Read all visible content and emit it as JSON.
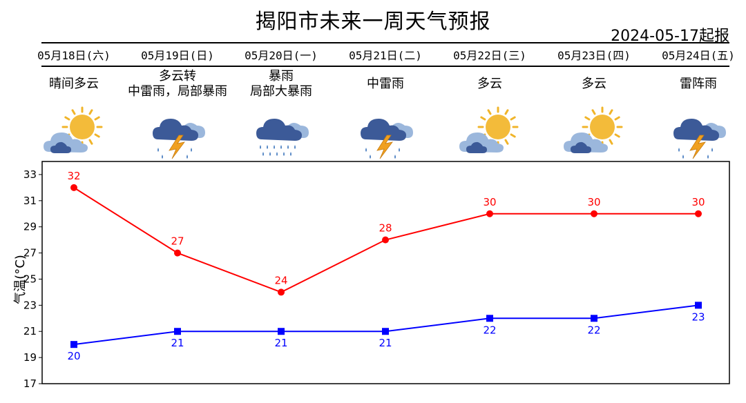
{
  "header": {
    "title": "揭阳市未来一周天气预报",
    "issued": "2024-05-17起报"
  },
  "days": [
    {
      "date": "05月18日(六)",
      "weather": [
        "晴间多云"
      ],
      "icon": "partly-cloudy-sun-icon"
    },
    {
      "date": "05月19日(日)",
      "weather": [
        "多云转",
        "中雷雨，局部暴雨"
      ],
      "icon": "thunderstorm-icon"
    },
    {
      "date": "05月20日(一)",
      "weather": [
        "暴雨",
        "局部大暴雨"
      ],
      "icon": "heavy-rain-icon"
    },
    {
      "date": "05月21日(二)",
      "weather": [
        "中雷雨"
      ],
      "icon": "thunderstorm-icon"
    },
    {
      "date": "05月22日(三)",
      "weather": [
        "多云"
      ],
      "icon": "partly-cloudy-sun-icon"
    },
    {
      "date": "05月23日(四)",
      "weather": [
        "多云"
      ],
      "icon": "partly-cloudy-sun-icon"
    },
    {
      "date": "05月24日(五)",
      "weather": [
        "雷阵雨"
      ],
      "icon": "thunderstorm-icon"
    }
  ],
  "chart_data": {
    "type": "line",
    "title": "",
    "xlabel": "",
    "ylabel": "气温(°C)",
    "categories": [
      "05月18日(六)",
      "05月19日(日)",
      "05月20日(一)",
      "05月21日(二)",
      "05月22日(三)",
      "05月23日(四)",
      "05月24日(五)"
    ],
    "ylim": [
      17,
      34
    ],
    "yticks": [
      17,
      19,
      21,
      23,
      25,
      27,
      29,
      31,
      33
    ],
    "grid": false,
    "series": [
      {
        "values": [
          32,
          27,
          24,
          28,
          30,
          30,
          30
        ],
        "color": "#ff0000",
        "marker": "circle",
        "label_position": "above"
      },
      {
        "values": [
          20,
          21,
          21,
          21,
          22,
          22,
          23
        ],
        "color": "#0000ff",
        "marker": "square",
        "label_position": "below"
      }
    ]
  }
}
